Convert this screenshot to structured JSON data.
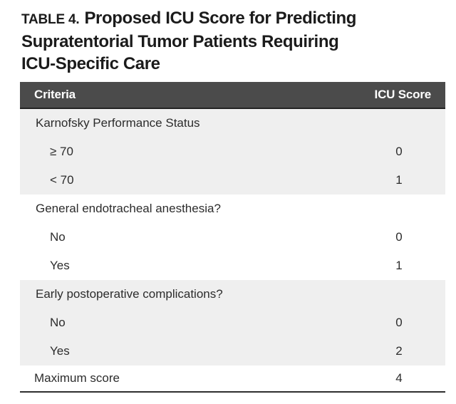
{
  "title": {
    "label": "TABLE 4.",
    "line1": "Proposed ICU Score for Predicting",
    "line2": "Supratentorial Tumor Patients Requiring",
    "line3": "ICU-Specific Care"
  },
  "table": {
    "columns": [
      "Criteria",
      "ICU Score"
    ],
    "sections": [
      {
        "header": "Karnofsky Performance Status",
        "shaded": true,
        "rows": [
          {
            "label": "≥ 70",
            "score": "0"
          },
          {
            "label": "< 70",
            "score": "1"
          }
        ]
      },
      {
        "header": "General endotracheal anesthesia?",
        "shaded": false,
        "rows": [
          {
            "label": "No",
            "score": "0"
          },
          {
            "label": "Yes",
            "score": "1"
          }
        ]
      },
      {
        "header": "Early postoperative complications?",
        "shaded": true,
        "rows": [
          {
            "label": "No",
            "score": "0"
          },
          {
            "label": "Yes",
            "score": "2"
          }
        ]
      }
    ],
    "footer": {
      "label": "Maximum score",
      "score": "4"
    }
  },
  "colors": {
    "header_bg": "#4b4b4b",
    "header_text": "#ffffff",
    "shaded_row": "#efefef",
    "body_text": "#2c2c2c",
    "title_text": "#1b1b1b",
    "bottom_border": "#2e2e2e"
  }
}
